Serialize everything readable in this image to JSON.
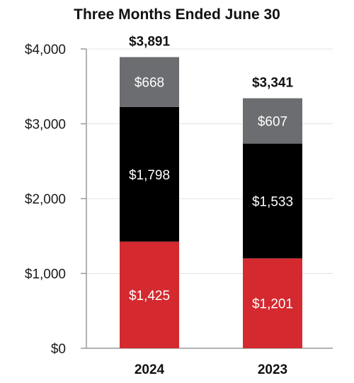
{
  "chart_data": {
    "type": "bar",
    "stacked": true,
    "title": "Three Months Ended June 30",
    "categories": [
      "2024",
      "2023"
    ],
    "series": [
      {
        "values": [
          1425,
          1201
        ],
        "labels": [
          "$1,425",
          "$1,201"
        ],
        "color": "#d42a2f"
      },
      {
        "values": [
          1798,
          1533
        ],
        "labels": [
          "$1,798",
          "$1,533"
        ],
        "color": "#000000"
      },
      {
        "values": [
          668,
          607
        ],
        "labels": [
          "$668",
          "$607"
        ],
        "color": "#6b6d70"
      }
    ],
    "totals": [
      3891,
      3341
    ],
    "total_labels": [
      "$3,891",
      "$3,341"
    ],
    "ylim": [
      0,
      4000
    ],
    "yticks": [
      0,
      1000,
      2000,
      3000,
      4000
    ],
    "ytick_labels": [
      "$0",
      "$1,000",
      "$2,000",
      "$3,000",
      "$4,000"
    ],
    "grid": true,
    "legend": "none"
  }
}
